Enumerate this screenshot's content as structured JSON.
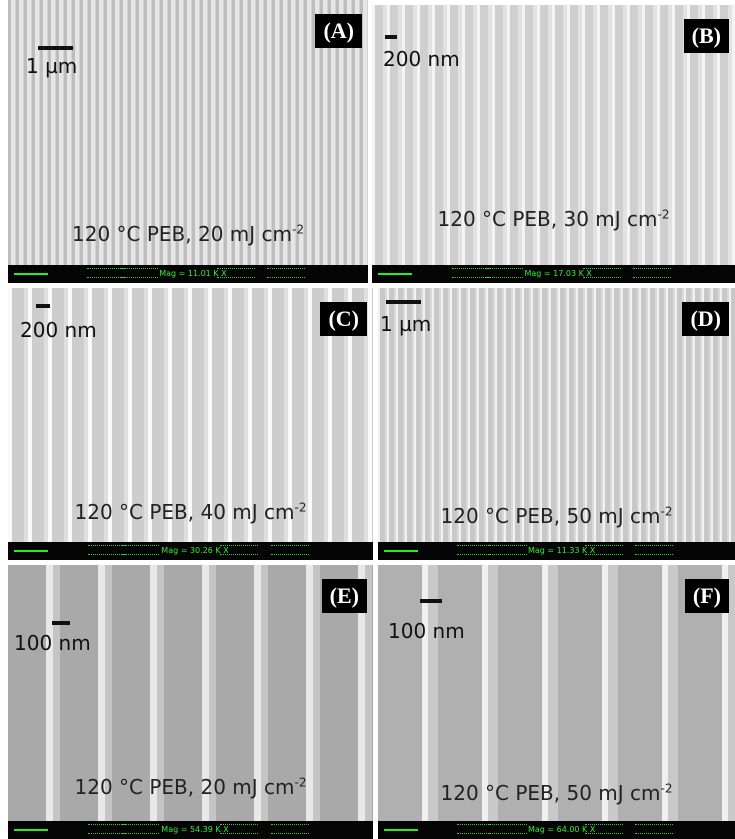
{
  "panels": [
    {
      "label": "(A)",
      "scale_bar": "1 µm",
      "caption": "120 °C PEB, 20 mJ cm",
      "caption_superscript": "-2",
      "mag": "Mag = 11.01 K X"
    },
    {
      "label": "(B)",
      "scale_bar": "200 nm",
      "caption": "120 °C PEB, 30 mJ cm",
      "caption_superscript": "-2",
      "mag": "Mag = 17.03 K X"
    },
    {
      "label": "(C)",
      "scale_bar": "200 nm",
      "caption": "120 °C PEB, 40 mJ cm",
      "caption_superscript": "-2",
      "mag": "Mag = 30.26 K X"
    },
    {
      "label": "(D)",
      "scale_bar": "1 µm",
      "caption": "120 °C PEB, 50 mJ cm",
      "caption_superscript": "-2",
      "mag": "Mag = 11.33 K X"
    },
    {
      "label": "(E)",
      "scale_bar": "100 nm",
      "caption": "120 °C PEB, 20 mJ cm",
      "caption_superscript": "-2",
      "mag": "Mag = 54.39 K X"
    },
    {
      "label": "(F)",
      "scale_bar": "100 nm",
      "caption": "120 °C PEB, 50 mJ cm",
      "caption_superscript": "-2",
      "mag": "Mag = 64.00 K X"
    }
  ]
}
